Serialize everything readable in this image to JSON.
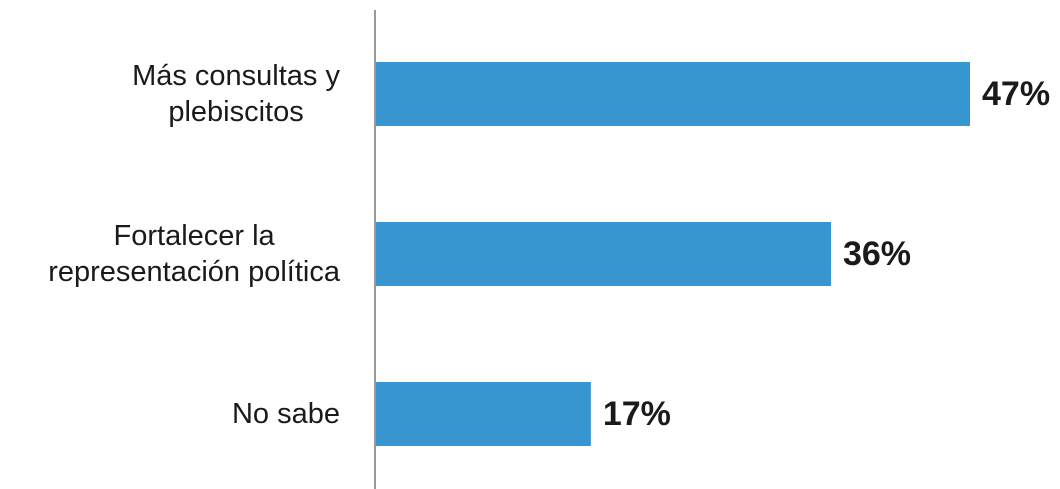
{
  "chart_data": {
    "type": "bar",
    "orientation": "horizontal",
    "categories": [
      [
        "Más consultas y",
        "plebiscitos"
      ],
      [
        "Fortalecer la",
        "representación política"
      ],
      [
        "No sabe"
      ]
    ],
    "values": [
      47,
      36,
      17
    ],
    "value_labels": [
      "47%",
      "36%",
      "17%"
    ],
    "unit": "%",
    "title": "",
    "xlabel": "",
    "ylabel": "",
    "xlim": [
      0,
      47
    ],
    "grid": false,
    "legend": "none",
    "colors": {
      "bar": "#3795cf",
      "axis": "#999999",
      "text": "#1a1a1a"
    }
  }
}
